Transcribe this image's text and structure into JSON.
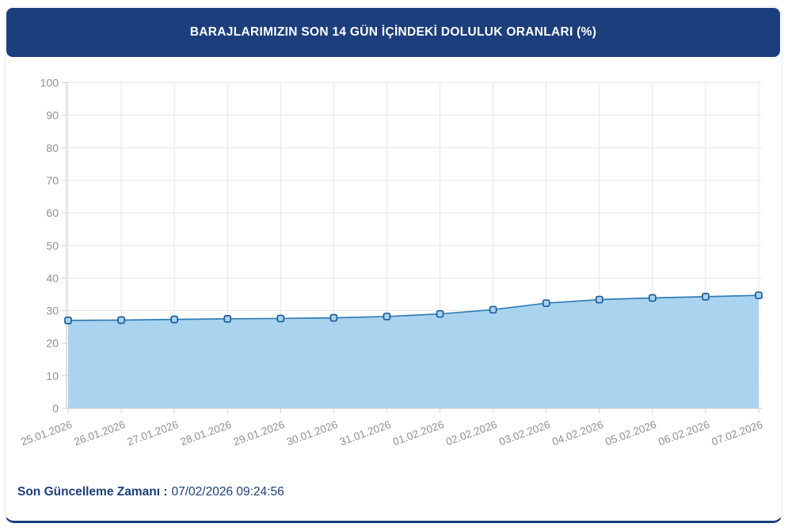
{
  "header": {
    "title": "BARAJLARIMIZIN SON 14 GÜN İÇİNDEKİ DOLULUK ORANLARI (%)"
  },
  "footer": {
    "last_update_label": "Son Güncelleme Zamanı :",
    "last_update_value": "07/02/2026 09:24:56"
  },
  "colors": {
    "navy": "#1c3e7c",
    "line": "#2f7cb5",
    "area_fill": "#a5d1ee",
    "marker_border": "#1d5d99",
    "marker_fill": "#a8d3ef",
    "grid": "#e6e6e6",
    "axis": "#cfcfcf",
    "tick_text": "#8f8f8f"
  },
  "chart_data": {
    "type": "area",
    "title": "BARAJLARIMIZIN SON 14 GÜN İÇİNDEKİ DOLULUK ORANLARI (%)",
    "categories": [
      "25.01.2026",
      "26.01.2026",
      "27.01.2026",
      "28.01.2026",
      "29.01.2026",
      "30.01.2026",
      "31.01.2026",
      "01.02.2026",
      "02.02.2026",
      "03.02.2026",
      "04.02.2026",
      "05.02.2026",
      "06.02.2026",
      "07.02.2026"
    ],
    "values": [
      27.0,
      27.1,
      27.3,
      27.5,
      27.6,
      27.8,
      28.2,
      29.0,
      30.3,
      32.3,
      33.4,
      33.9,
      34.3,
      34.7
    ],
    "xlabel": "",
    "ylabel": "",
    "ylim": [
      0,
      100
    ],
    "ytick_step": 10,
    "grid": true,
    "legend": false,
    "marker": "square",
    "x_label_rotation_deg": -20
  }
}
